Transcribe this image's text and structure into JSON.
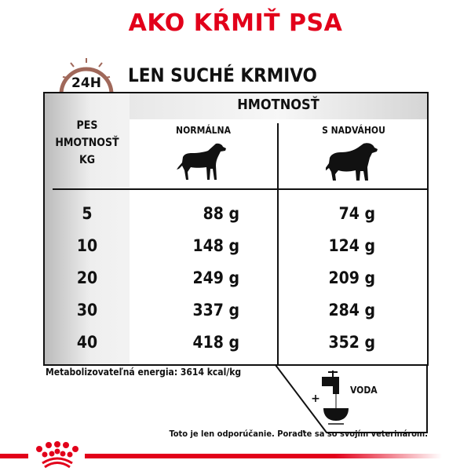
{
  "title": "AKO KŔMIŤ PSA",
  "clock_label": "24H",
  "subtitle": "LEN SUCHÉ KRMIVO",
  "table": {
    "group_header": "HMOTNOSŤ",
    "left_header": [
      "PES",
      "HMOTNOSŤ",
      "KG"
    ],
    "columns": [
      "NORMÁLNA",
      "S NADVÁHOU"
    ],
    "rows": [
      {
        "kg": "5",
        "normal": "88 g",
        "overweight": "74 g"
      },
      {
        "kg": "10",
        "normal": "148 g",
        "overweight": "124 g"
      },
      {
        "kg": "20",
        "normal": "249 g",
        "overweight": "209 g"
      },
      {
        "kg": "30",
        "normal": "337 g",
        "overweight": "284 g"
      },
      {
        "kg": "40",
        "normal": "418 g",
        "overweight": "352 g"
      }
    ]
  },
  "energy": "Metabolizovateľná energia: 3614 kcal/kg",
  "water": {
    "plus": "+",
    "label": "VODA"
  },
  "note": "Toto je len odporúčanie. Poraďte sa so svojím veterinárom.",
  "colors": {
    "brand_red": "#e2001a",
    "clock": "#a0685a"
  }
}
